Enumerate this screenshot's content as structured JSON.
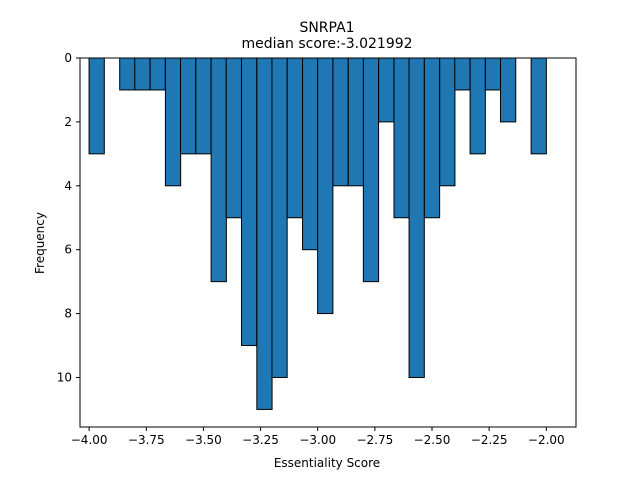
{
  "chart_data": {
    "type": "bar",
    "title": "SNRPA1",
    "subtitle": "median score:-3.021992",
    "xlabel": "Essentiality Score",
    "ylabel": "Frequency",
    "xlim": [
      -4.04,
      -1.87
    ],
    "ylim": [
      11.55,
      0
    ],
    "y_inverted": true,
    "bin_width": 0.0667,
    "x_ticks": [
      -4.0,
      -3.75,
      -3.5,
      -3.25,
      -3.0,
      -2.75,
      -2.5,
      -2.25,
      -2.0
    ],
    "x_tick_labels": [
      "−4.00",
      "−3.75",
      "−3.50",
      "−3.25",
      "−3.00",
      "−2.75",
      "−2.50",
      "−2.25",
      "−2.00"
    ],
    "y_ticks": [
      0,
      2,
      4,
      6,
      8,
      10
    ],
    "y_tick_labels": [
      "0",
      "2",
      "4",
      "6",
      "8",
      "10"
    ],
    "bar_color": "#1f77b4",
    "edge_color": "#000000",
    "bars": [
      {
        "x": -3.967,
        "value": 3
      },
      {
        "x": -3.833,
        "value": 1
      },
      {
        "x": -3.767,
        "value": 1
      },
      {
        "x": -3.7,
        "value": 1
      },
      {
        "x": -3.633,
        "value": 4
      },
      {
        "x": -3.567,
        "value": 3
      },
      {
        "x": -3.5,
        "value": 3
      },
      {
        "x": -3.433,
        "value": 7
      },
      {
        "x": -3.367,
        "value": 5
      },
      {
        "x": -3.3,
        "value": 9
      },
      {
        "x": -3.233,
        "value": 11
      },
      {
        "x": -3.167,
        "value": 10
      },
      {
        "x": -3.1,
        "value": 5
      },
      {
        "x": -3.033,
        "value": 6
      },
      {
        "x": -2.967,
        "value": 8
      },
      {
        "x": -2.9,
        "value": 4
      },
      {
        "x": -2.833,
        "value": 4
      },
      {
        "x": -2.767,
        "value": 7
      },
      {
        "x": -2.7,
        "value": 2
      },
      {
        "x": -2.633,
        "value": 5
      },
      {
        "x": -2.567,
        "value": 10
      },
      {
        "x": -2.5,
        "value": 5
      },
      {
        "x": -2.433,
        "value": 4
      },
      {
        "x": -2.367,
        "value": 1
      },
      {
        "x": -2.3,
        "value": 3
      },
      {
        "x": -2.233,
        "value": 1
      },
      {
        "x": -2.167,
        "value": 2
      },
      {
        "x": -2.033,
        "value": 3
      }
    ]
  }
}
